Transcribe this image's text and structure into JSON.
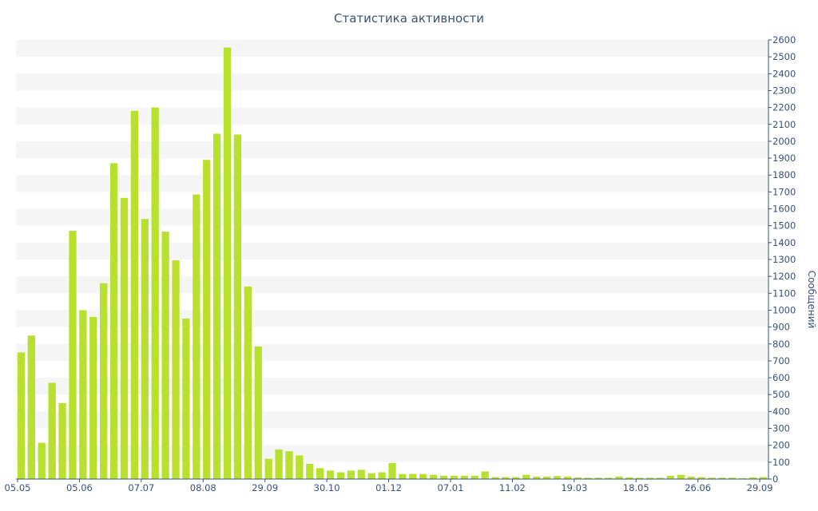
{
  "chart_data": {
    "type": "bar",
    "title": "Статистика активности",
    "ylabel": "Сообщений",
    "xlabel": "",
    "ylim": [
      0,
      2600
    ],
    "yticks": [
      0,
      100,
      200,
      300,
      400,
      500,
      600,
      700,
      800,
      900,
      1000,
      1100,
      1200,
      1300,
      1400,
      1500,
      1600,
      1700,
      1800,
      1900,
      2000,
      2100,
      2200,
      2300,
      2400,
      2500,
      2600
    ],
    "y_axis_side": "right",
    "grid": "alternating horizontal bands",
    "bar_color": "#b8e02e",
    "band_color": "#f5f5f5",
    "axis_color": "#3a5078",
    "x_tick_labels": [
      {
        "label": "05.05",
        "index": 0
      },
      {
        "label": "05.06",
        "index": 6
      },
      {
        "label": "07.07",
        "index": 12
      },
      {
        "label": "08.08",
        "index": 18
      },
      {
        "label": "29.09",
        "index": 24
      },
      {
        "label": "30.10",
        "index": 30
      },
      {
        "label": "01.12",
        "index": 36
      },
      {
        "label": "07.01",
        "index": 42
      },
      {
        "label": "11.02",
        "index": 48
      },
      {
        "label": "19.03",
        "index": 54
      },
      {
        "label": "18.05",
        "index": 60
      },
      {
        "label": "26.06",
        "index": 66
      },
      {
        "label": "29.09",
        "index": 72
      }
    ],
    "values": [
      750,
      850,
      215,
      570,
      450,
      1470,
      1000,
      960,
      1160,
      1870,
      1665,
      2180,
      1540,
      2200,
      1465,
      1295,
      950,
      1685,
      1890,
      2045,
      2555,
      2040,
      1140,
      785,
      120,
      175,
      165,
      140,
      90,
      65,
      50,
      40,
      50,
      55,
      35,
      40,
      95,
      30,
      30,
      30,
      25,
      20,
      20,
      20,
      20,
      45,
      12,
      12,
      12,
      25,
      15,
      15,
      18,
      15,
      10,
      8,
      8,
      8,
      15,
      10,
      8,
      8,
      8,
      20,
      25,
      15,
      12,
      8,
      8,
      8,
      5,
      10,
      12
    ]
  }
}
